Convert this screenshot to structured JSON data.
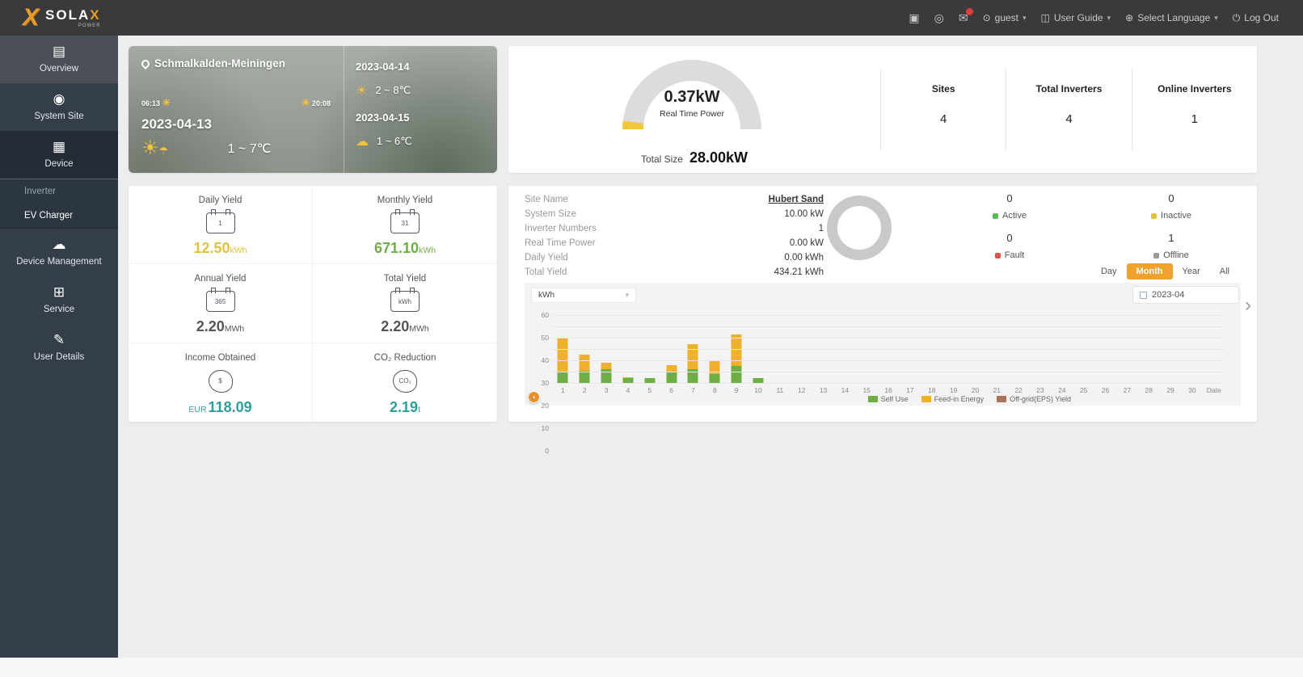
{
  "topbar": {
    "brand": "SOLA",
    "brand_x": "X",
    "brand_sub": "POWER",
    "icons": [
      {
        "name": "alarm-icon"
      },
      {
        "name": "report-icon"
      },
      {
        "name": "message-icon",
        "badge": true
      }
    ],
    "menus": [
      {
        "name": "user-menu",
        "icon": "user-icon",
        "label": "guest",
        "caret": true
      },
      {
        "name": "user-guide-menu",
        "icon": "guide-icon",
        "label": "User Guide",
        "caret": true
      },
      {
        "name": "language-menu",
        "icon": "language-icon",
        "label": "Select Language",
        "caret": true
      },
      {
        "name": "logout-menu",
        "icon": "logout-icon",
        "label": "Log Out",
        "caret": false
      }
    ]
  },
  "sidebar": {
    "entries": [
      {
        "type": "item",
        "label": "Overview",
        "icon": "overview-icon",
        "active": false,
        "first": true
      },
      {
        "type": "item",
        "label": "System Site",
        "icon": "system-site-icon",
        "active": false
      },
      {
        "type": "item",
        "label": "Device",
        "icon": "device-icon",
        "active": true
      },
      {
        "type": "sub",
        "label": "Inverter",
        "active": false
      },
      {
        "type": "sub",
        "label": "EV Charger",
        "active": true
      },
      {
        "type": "item",
        "label": "Device Management",
        "icon": "device-management-icon",
        "active": false
      },
      {
        "type": "item",
        "label": "Service",
        "icon": "service-icon",
        "active": false
      },
      {
        "type": "item",
        "label": "User Details",
        "icon": "user-details-icon",
        "active": false
      }
    ]
  },
  "weather": {
    "location": "Schmalkalden-Meiningen",
    "sunrise": "06:13",
    "sunset": "20:08",
    "today_date": "2023-04-13",
    "today_temp": "1 ~ 7℃",
    "forecast": [
      {
        "date": "2023-04-14",
        "temp": "2 ~ 8℃",
        "icon": "sun-icon"
      },
      {
        "date": "2023-04-15",
        "temp": "1 ~ 6℃",
        "icon": "sun-cloud-icon"
      }
    ]
  },
  "power_card": {
    "real_time_power": "0.37kW",
    "real_time_power_label": "Real Time Power",
    "total_size_label": "Total Size",
    "total_size": "28.00kW",
    "gauge_color": "#f0c73a",
    "stats": [
      {
        "label": "Sites",
        "value": "4"
      },
      {
        "label": "Total Inverters",
        "value": "4"
      },
      {
        "label": "Online Inverters",
        "value": "1"
      }
    ]
  },
  "yield_card": {
    "items": [
      {
        "label": "Daily Yield",
        "icon": "calendar-day-icon",
        "icon_text": "1",
        "value": "12.50",
        "unit": "kWh",
        "prefix": "",
        "color": "#e0c23c"
      },
      {
        "label": "Monthly Yield",
        "icon": "calendar-month-icon",
        "icon_text": "31",
        "value": "671.10",
        "unit": "kWh",
        "prefix": "",
        "color": "#6fae44"
      },
      {
        "label": "Annual Yield",
        "icon": "calendar-year-icon",
        "icon_text": "365",
        "value": "2.20",
        "unit": "MWh",
        "prefix": "",
        "color": "#555555"
      },
      {
        "label": "Total Yield",
        "icon": "calendar-total-icon",
        "icon_text": "kWh",
        "value": "2.20",
        "unit": "MWh",
        "prefix": "",
        "color": "#555555"
      },
      {
        "label": "Income Obtained",
        "icon": "coins-icon",
        "icon_text": "$",
        "value": "118.09",
        "unit": "",
        "prefix": "EUR",
        "color": "#2f9e9b"
      },
      {
        "label": "CO₂ Reduction",
        "icon": "co2-icon",
        "icon_text": "CO₂",
        "value": "2.19",
        "unit": "t",
        "prefix": "",
        "color": "#2f9e9b"
      }
    ]
  },
  "site_card": {
    "details": [
      {
        "label": "Site Name",
        "value": "Hubert Sand",
        "link": true
      },
      {
        "label": "System Size",
        "value": "10.00 kW",
        "link": false
      },
      {
        "label": "Inverter Numbers",
        "value": "1",
        "link": false
      },
      {
        "label": "Real Time Power",
        "value": "0.00 kW",
        "link": false
      },
      {
        "label": "Daily Yield",
        "value": "0.00 kWh",
        "link": false
      },
      {
        "label": "Total Yield",
        "value": "434.21 kWh",
        "link": false
      }
    ],
    "statuses": [
      {
        "label": "Active",
        "count": "0",
        "color": "#5cb85c"
      },
      {
        "label": "Inactive",
        "count": "0",
        "color": "#e0c23c"
      },
      {
        "label": "Fault",
        "count": "0",
        "color": "#d9534f"
      },
      {
        "label": "Offline",
        "count": "1",
        "color": "#9a9a9a"
      }
    ],
    "range_buttons": [
      "Day",
      "Month",
      "Year",
      "All"
    ],
    "active_range": "Month",
    "date_value": "2023-04",
    "unit_select_value": "kWh"
  },
  "chart_data": {
    "type": "bar",
    "stacked": true,
    "x": [
      1,
      2,
      3,
      4,
      5,
      6,
      7,
      8,
      9,
      10,
      11,
      12,
      13,
      14,
      15,
      16,
      17,
      18,
      19,
      20,
      21,
      22,
      23,
      24,
      25,
      26,
      27,
      28,
      29,
      30
    ],
    "x_end_label": "Date",
    "ylim": [
      0,
      60
    ],
    "yticks": [
      0,
      10,
      20,
      30,
      40,
      50,
      60
    ],
    "y_unit": "kWh",
    "grid": true,
    "legend_position": "bottom",
    "series": [
      {
        "name": "Self Use",
        "color": "#6fae44",
        "values": [
          10,
          11,
          12,
          4,
          4,
          9,
          12,
          8,
          15,
          4,
          0,
          0,
          0,
          0,
          0,
          0,
          0,
          0,
          0,
          0,
          0,
          0,
          0,
          0,
          0,
          0,
          0,
          0,
          0,
          0
        ]
      },
      {
        "name": "Feed-in Energy",
        "color": "#efb02b",
        "values": [
          30,
          14,
          6,
          1,
          0.5,
          7,
          22,
          12,
          28,
          0,
          0,
          0,
          0,
          0,
          0,
          0,
          0,
          0,
          0,
          0,
          0,
          0,
          0,
          0,
          0,
          0,
          0,
          0,
          0,
          0
        ]
      },
      {
        "name": "Off-grid(EPS) Yield",
        "color": "#a9725a",
        "values": [
          0,
          0,
          0,
          0,
          0,
          0,
          0,
          0,
          0,
          0,
          0,
          0,
          0,
          0,
          0,
          0,
          0,
          0,
          0,
          0,
          0,
          0,
          0,
          0,
          0,
          0,
          0,
          0,
          0,
          0
        ]
      }
    ]
  }
}
